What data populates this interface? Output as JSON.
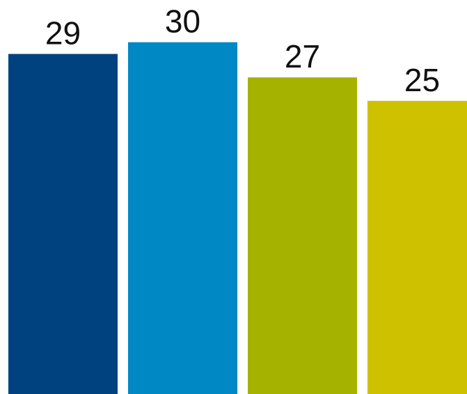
{
  "chart_data": {
    "type": "bar",
    "values": [
      29,
      30,
      27,
      25
    ],
    "data_labels": [
      "29",
      "30",
      "27",
      "25"
    ],
    "colors": [
      "#00427f",
      "#0088c4",
      "#a5b200",
      "#cec200"
    ],
    "ylim": [
      0,
      33.6
    ],
    "grid": false,
    "legend": "none",
    "axes_visible": false
  }
}
